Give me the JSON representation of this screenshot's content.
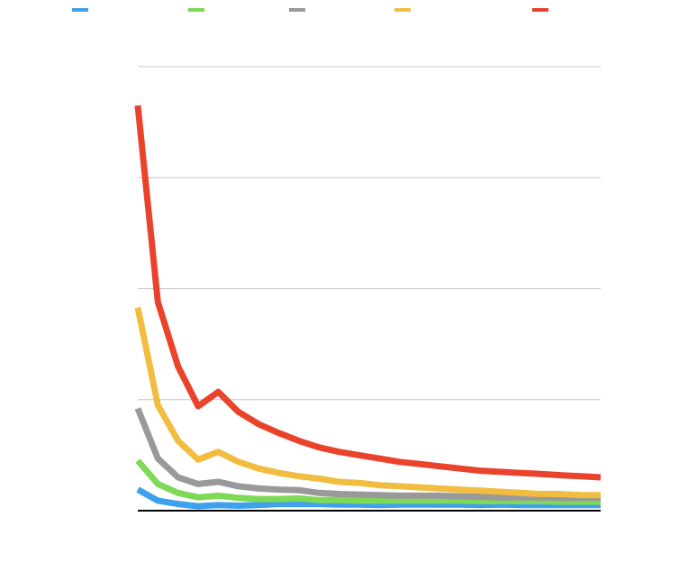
{
  "chart_data": {
    "type": "line",
    "title": "",
    "xlabel": "",
    "ylabel": "",
    "ylim": [
      0,
      4
    ],
    "grid": true,
    "legend_position": "top",
    "x": [
      1,
      2,
      3,
      4,
      5,
      6,
      7,
      8,
      9,
      10,
      11,
      12,
      13,
      14,
      15,
      16,
      17,
      18,
      19,
      20,
      21,
      22,
      23,
      24
    ],
    "series": [
      {
        "name": "",
        "color": "#3ea1ee",
        "values": [
          0.19,
          0.09,
          0.06,
          0.04,
          0.05,
          0.045,
          0.05,
          0.06,
          0.06,
          0.06,
          0.055,
          0.055,
          0.05,
          0.055,
          0.055,
          0.055,
          0.055,
          0.05,
          0.055,
          0.05,
          0.05,
          0.05,
          0.05,
          0.05
        ]
      },
      {
        "name": "",
        "color": "#7ed957",
        "values": [
          0.45,
          0.24,
          0.16,
          0.12,
          0.135,
          0.115,
          0.105,
          0.105,
          0.11,
          0.095,
          0.095,
          0.09,
          0.09,
          0.09,
          0.09,
          0.09,
          0.09,
          0.085,
          0.085,
          0.085,
          0.085,
          0.08,
          0.08,
          0.08
        ]
      },
      {
        "name": "",
        "color": "#999999",
        "values": [
          0.92,
          0.47,
          0.3,
          0.24,
          0.26,
          0.22,
          0.2,
          0.19,
          0.185,
          0.16,
          0.15,
          0.145,
          0.14,
          0.135,
          0.135,
          0.135,
          0.13,
          0.125,
          0.12,
          0.12,
          0.12,
          0.115,
          0.115,
          0.115
        ]
      },
      {
        "name": "",
        "color": "#f1bd41",
        "values": [
          1.83,
          0.95,
          0.63,
          0.46,
          0.53,
          0.44,
          0.38,
          0.34,
          0.31,
          0.29,
          0.26,
          0.25,
          0.23,
          0.22,
          0.21,
          0.2,
          0.19,
          0.18,
          0.17,
          0.16,
          0.15,
          0.15,
          0.14,
          0.14
        ]
      },
      {
        "name": "",
        "color": "#ea432b",
        "values": [
          3.65,
          1.88,
          1.3,
          0.94,
          1.07,
          0.89,
          0.78,
          0.7,
          0.63,
          0.57,
          0.53,
          0.5,
          0.47,
          0.44,
          0.42,
          0.4,
          0.38,
          0.36,
          0.35,
          0.34,
          0.33,
          0.32,
          0.31,
          0.3
        ]
      }
    ]
  }
}
